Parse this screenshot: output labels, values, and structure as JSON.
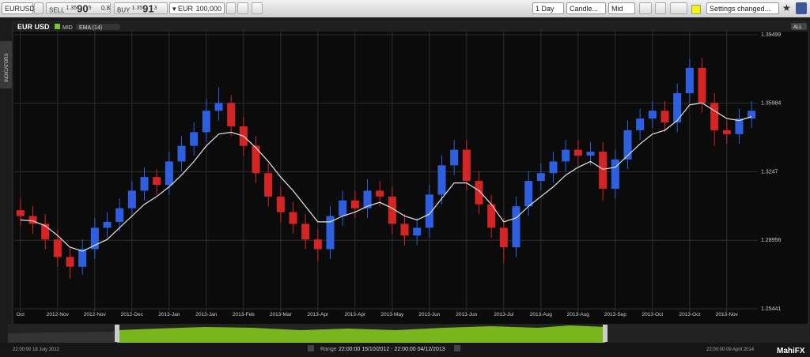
{
  "toolbar": {
    "symbol": "EURUSD",
    "sell_label": "SELL",
    "sell_prefix": "1.35",
    "sell_big": "90",
    "sell_small": "5",
    "spread": "0.8",
    "buy_label": "BUY",
    "buy_prefix": "1.35",
    "buy_big": "91",
    "buy_small": "3",
    "currency": "EUR",
    "amount": "100,000",
    "period": "1 Day",
    "chart_style": "Candle...",
    "price_type": "Mid",
    "settings": "Settings changed..."
  },
  "side_tab": "INDICATORS",
  "all_button": "ALL",
  "navigator": {
    "start": "22:00:00 18 July 2012",
    "range_label": "Range",
    "range": "22:00:00 15/10/2012 - 22:00:00 04/12/2013",
    "end": "22:00:00 09 April 2014",
    "brand": "MahiFX"
  },
  "chart_data": {
    "type": "candlestick",
    "title": "EUR USD",
    "candle_name": "MID",
    "candle_legend_color": "#7cc22a",
    "up_color": "#2d5fe0",
    "down_color": "#d42424",
    "grid": true,
    "categories": [
      "Oct",
      null,
      null,
      "2012-Nov",
      null,
      null,
      "2012-Nov",
      null,
      null,
      "2012-Dec",
      null,
      null,
      "2013-Jan",
      null,
      null,
      "2013-Jan",
      null,
      null,
      "2013-Feb",
      null,
      null,
      "2013-Mar",
      null,
      null,
      "2013-Apr",
      null,
      null,
      "2013-Apr",
      null,
      null,
      "2013-May",
      null,
      null,
      "2013-Jun",
      null,
      null,
      "2013-Jun",
      null,
      null,
      "2013-Jul",
      null,
      null,
      "2013-Aug",
      null,
      null,
      "2013-Aug",
      null,
      null,
      "2013-Sep",
      null,
      null,
      "2013-Oct",
      null,
      null,
      "2013-Oct",
      null,
      null,
      "2013-Nov",
      null,
      null
    ],
    "open": [
      1.305,
      1.302,
      1.298,
      1.29,
      1.281,
      1.276,
      1.285,
      1.296,
      1.299,
      1.306,
      1.315,
      1.322,
      1.318,
      1.33,
      1.338,
      1.345,
      1.356,
      1.36,
      1.348,
      1.338,
      1.324,
      1.312,
      1.304,
      1.298,
      1.29,
      1.285,
      1.302,
      1.31,
      1.306,
      1.315,
      1.312,
      1.298,
      1.292,
      1.296,
      1.313,
      1.328,
      1.336,
      1.32,
      1.308,
      1.296,
      1.286,
      1.307,
      1.32,
      1.324,
      1.33,
      1.336,
      1.333,
      1.335,
      1.316,
      1.331,
      1.346,
      1.352,
      1.356,
      1.35,
      1.365,
      1.378,
      1.36,
      1.346,
      1.344,
      1.352
    ],
    "high": [
      1.311,
      1.307,
      1.303,
      1.295,
      1.286,
      1.29,
      1.301,
      1.304,
      1.311,
      1.32,
      1.327,
      1.326,
      1.335,
      1.343,
      1.35,
      1.362,
      1.368,
      1.364,
      1.353,
      1.343,
      1.329,
      1.317,
      1.309,
      1.303,
      1.295,
      1.307,
      1.315,
      1.315,
      1.321,
      1.32,
      1.317,
      1.303,
      1.301,
      1.318,
      1.333,
      1.341,
      1.341,
      1.325,
      1.313,
      1.301,
      1.312,
      1.325,
      1.329,
      1.335,
      1.341,
      1.341,
      1.34,
      1.34,
      1.336,
      1.351,
      1.357,
      1.361,
      1.361,
      1.37,
      1.383,
      1.383,
      1.365,
      1.351,
      1.357,
      1.361
    ],
    "low": [
      1.297,
      1.293,
      1.285,
      1.276,
      1.27,
      1.272,
      1.28,
      1.291,
      1.294,
      1.301,
      1.31,
      1.313,
      1.313,
      1.325,
      1.333,
      1.34,
      1.351,
      1.343,
      1.333,
      1.319,
      1.307,
      1.299,
      1.293,
      1.285,
      1.279,
      1.28,
      1.297,
      1.301,
      1.301,
      1.307,
      1.293,
      1.287,
      1.287,
      1.291,
      1.308,
      1.323,
      1.315,
      1.303,
      1.291,
      1.278,
      1.281,
      1.302,
      1.315,
      1.319,
      1.325,
      1.328,
      1.328,
      1.31,
      1.311,
      1.326,
      1.341,
      1.347,
      1.345,
      1.345,
      1.36,
      1.355,
      1.338,
      1.339,
      1.339,
      1.347
    ],
    "close": [
      1.302,
      1.298,
      1.29,
      1.281,
      1.276,
      1.285,
      1.296,
      1.299,
      1.306,
      1.315,
      1.322,
      1.318,
      1.33,
      1.338,
      1.345,
      1.356,
      1.36,
      1.348,
      1.338,
      1.324,
      1.312,
      1.304,
      1.298,
      1.29,
      1.285,
      1.302,
      1.31,
      1.306,
      1.315,
      1.312,
      1.298,
      1.292,
      1.296,
      1.313,
      1.328,
      1.336,
      1.32,
      1.308,
      1.296,
      1.286,
      1.307,
      1.32,
      1.324,
      1.33,
      1.336,
      1.333,
      1.335,
      1.316,
      1.331,
      1.346,
      1.352,
      1.356,
      1.35,
      1.365,
      1.378,
      1.36,
      1.346,
      1.344,
      1.352,
      1.356
    ],
    "series": [
      {
        "name": "EMA (14)",
        "color": "#e6e6e6",
        "values": [
          1.3,
          1.2995,
          1.297,
          1.292,
          1.286,
          1.284,
          1.287,
          1.29,
          1.296,
          1.302,
          1.308,
          1.312,
          1.317,
          1.323,
          1.33,
          1.338,
          1.344,
          1.345,
          1.343,
          1.337,
          1.33,
          1.322,
          1.315,
          1.307,
          1.299,
          1.299,
          1.302,
          1.304,
          1.307,
          1.309,
          1.306,
          1.302,
          1.3,
          1.303,
          1.311,
          1.319,
          1.319,
          1.315,
          1.308,
          1.299,
          1.301,
          1.307,
          1.312,
          1.317,
          1.323,
          1.327,
          1.33,
          1.326,
          1.327,
          1.333,
          1.339,
          1.344,
          1.346,
          1.351,
          1.359,
          1.36,
          1.356,
          1.352,
          1.351,
          1.353
        ]
      }
    ],
    "ylim": [
      1.2528,
      1.3974
    ],
    "yticks": [
      1.25441,
      1.28956,
      1.3247,
      1.35984,
      1.39499
    ]
  }
}
